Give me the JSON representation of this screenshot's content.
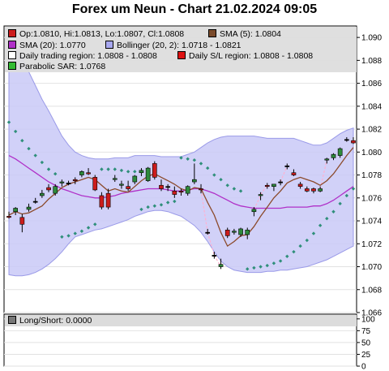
{
  "header": {
    "title": "Forex um Neun - Chart 21.02.2024 09:05"
  },
  "legend": {
    "ohlc": "Op:1.0810, Hi:1.0813, Lo:1.0807, Cl:1.0808",
    "sma5": "SMA (5): 1.0804",
    "sma20": "SMA (20): 1.0770",
    "bollinger": "Bollinger (20, 2): 1.0718 - 1.0821",
    "daily_region": "Daily trading region: 1.0808 - 1.0808",
    "daily_sl": "Daily S/L region: 1.0808 - 1.0808",
    "sar": "Parabolic SAR: 1.0768",
    "longshort": "Long/Short: 0.0000"
  },
  "colors": {
    "bull": "#2e8b3c",
    "bear": "#cc1c1c",
    "sma5": "#8b4a2b",
    "sma20": "#b030c8",
    "boll_fill": "#c9c9f7",
    "boll_line": "#9a9ae8",
    "sar": "#2f8f7a",
    "grid": "#e2e2e2",
    "region": "#ffb0d0"
  },
  "chart_data": {
    "type": "candlestick",
    "ylim": [
      1.066,
      1.091
    ],
    "yticks": [
      "1.066",
      "1.068",
      "1.070",
      "1.072",
      "1.074",
      "1.076",
      "1.078",
      "1.080",
      "1.082",
      "1.084",
      "1.086",
      "1.088",
      "1.090"
    ],
    "sub_ylim": [
      0,
      110
    ],
    "sub_yticks": [
      "0",
      "25",
      "50",
      "75",
      "100"
    ],
    "candles": [
      {
        "o": 1.0744,
        "h": 1.0748,
        "l": 1.0742,
        "c": 1.0743
      },
      {
        "o": 1.0748,
        "h": 1.0752,
        "l": 1.0745,
        "c": 1.0751
      },
      {
        "o": 1.0743,
        "h": 1.0746,
        "l": 1.073,
        "c": 1.0737
      },
      {
        "o": 1.075,
        "h": 1.0755,
        "l": 1.0748,
        "c": 1.0752
      },
      {
        "o": 1.0757,
        "h": 1.076,
        "l": 1.0755,
        "c": 1.0757
      },
      {
        "o": 1.0762,
        "h": 1.0767,
        "l": 1.076,
        "c": 1.0764
      },
      {
        "o": 1.0769,
        "h": 1.0772,
        "l": 1.0765,
        "c": 1.0767
      },
      {
        "o": 1.0764,
        "h": 1.0772,
        "l": 1.0762,
        "c": 1.077
      },
      {
        "o": 1.0773,
        "h": 1.0776,
        "l": 1.077,
        "c": 1.0774
      },
      {
        "o": 1.0773,
        "h": 1.0775,
        "l": 1.0771,
        "c": 1.0773
      },
      {
        "o": 1.0776,
        "h": 1.0778,
        "l": 1.0772,
        "c": 1.0775
      },
      {
        "o": 1.078,
        "h": 1.0784,
        "l": 1.0778,
        "c": 1.0783
      },
      {
        "o": 1.0782,
        "h": 1.0786,
        "l": 1.078,
        "c": 1.0781
      },
      {
        "o": 1.0778,
        "h": 1.078,
        "l": 1.0766,
        "c": 1.0767
      },
      {
        "o": 1.0762,
        "h": 1.0765,
        "l": 1.075,
        "c": 1.0752
      },
      {
        "o": 1.0764,
        "h": 1.0768,
        "l": 1.075,
        "c": 1.0752
      },
      {
        "o": 1.0776,
        "h": 1.078,
        "l": 1.0774,
        "c": 1.0777
      },
      {
        "o": 1.0771,
        "h": 1.0775,
        "l": 1.0768,
        "c": 1.0772
      },
      {
        "o": 1.077,
        "h": 1.0775,
        "l": 1.0766,
        "c": 1.0768
      },
      {
        "o": 1.0774,
        "h": 1.078,
        "l": 1.0772,
        "c": 1.0779
      },
      {
        "o": 1.0782,
        "h": 1.0786,
        "l": 1.0779,
        "c": 1.0784
      },
      {
        "o": 1.0775,
        "h": 1.0787,
        "l": 1.0774,
        "c": 1.0786
      },
      {
        "o": 1.079,
        "h": 1.0792,
        "l": 1.0776,
        "c": 1.0778
      },
      {
        "o": 1.0771,
        "h": 1.0776,
        "l": 1.0766,
        "c": 1.0768
      },
      {
        "o": 1.077,
        "h": 1.0772,
        "l": 1.0766,
        "c": 1.077
      },
      {
        "o": 1.0766,
        "h": 1.077,
        "l": 1.076,
        "c": 1.0763
      },
      {
        "o": 1.0766,
        "h": 1.0768,
        "l": 1.0762,
        "c": 1.0765
      },
      {
        "o": 1.0764,
        "h": 1.0771,
        "l": 1.0762,
        "c": 1.077
      },
      {
        "o": 1.0774,
        "h": 1.079,
        "l": 1.0772,
        "c": 1.0776
      },
      {
        "o": 1.0768,
        "h": 1.0772,
        "l": 1.0764,
        "c": 1.0767
      },
      {
        "o": 1.073,
        "h": 1.0733,
        "l": 1.0728,
        "c": 1.073
      },
      {
        "o": 1.071,
        "h": 1.0713,
        "l": 1.0707,
        "c": 1.071
      },
      {
        "o": 1.07,
        "h": 1.0707,
        "l": 1.0698,
        "c": 1.0702
      },
      {
        "o": 1.0732,
        "h": 1.0734,
        "l": 1.0725,
        "c": 1.0727
      },
      {
        "o": 1.073,
        "h": 1.0733,
        "l": 1.0728,
        "c": 1.0731
      },
      {
        "o": 1.0728,
        "h": 1.0734,
        "l": 1.0726,
        "c": 1.0733
      },
      {
        "o": 1.0728,
        "h": 1.0734,
        "l": 1.0724,
        "c": 1.0732
      },
      {
        "o": 1.0748,
        "h": 1.0752,
        "l": 1.0744,
        "c": 1.075
      },
      {
        "o": 1.0762,
        "h": 1.0765,
        "l": 1.0758,
        "c": 1.0763
      },
      {
        "o": 1.0771,
        "h": 1.0773,
        "l": 1.0768,
        "c": 1.077
      },
      {
        "o": 1.077,
        "h": 1.0772,
        "l": 1.0766,
        "c": 1.0772
      },
      {
        "o": 1.0774,
        "h": 1.0776,
        "l": 1.0771,
        "c": 1.0774
      },
      {
        "o": 1.0788,
        "h": 1.079,
        "l": 1.0785,
        "c": 1.0788
      },
      {
        "o": 1.0782,
        "h": 1.0785,
        "l": 1.0779,
        "c": 1.078
      },
      {
        "o": 1.0772,
        "h": 1.0774,
        "l": 1.0768,
        "c": 1.077
      },
      {
        "o": 1.0768,
        "h": 1.077,
        "l": 1.0765,
        "c": 1.0766
      },
      {
        "o": 1.0768,
        "h": 1.0769,
        "l": 1.0764,
        "c": 1.0766
      },
      {
        "o": 1.0766,
        "h": 1.077,
        "l": 1.0765,
        "c": 1.0768
      },
      {
        "o": 1.0793,
        "h": 1.0795,
        "l": 1.079,
        "c": 1.0794
      },
      {
        "o": 1.0795,
        "h": 1.0799,
        "l": 1.0793,
        "c": 1.0798
      },
      {
        "o": 1.0797,
        "h": 1.0804,
        "l": 1.0795,
        "c": 1.0803
      },
      {
        "o": 1.0811,
        "h": 1.0813,
        "l": 1.0809,
        "c": 1.0811
      },
      {
        "o": 1.081,
        "h": 1.0813,
        "l": 1.0807,
        "c": 1.0808
      }
    ],
    "sma5": [
      1.0745,
      1.0748,
      1.0746,
      1.0747,
      1.075,
      1.0753,
      1.0759,
      1.0764,
      1.0769,
      1.0772,
      1.0774,
      1.0776,
      1.0778,
      1.0776,
      1.0771,
      1.0766,
      1.0768,
      1.0766,
      1.0765,
      1.077,
      1.0775,
      1.0779,
      1.0781,
      1.0778,
      1.0775,
      1.0772,
      1.0768,
      1.0766,
      1.0769,
      1.0768,
      1.0756,
      1.0745,
      1.073,
      1.0718,
      1.0722,
      1.0727,
      1.0728,
      1.0735,
      1.0744,
      1.0752,
      1.076,
      1.0766,
      1.0773,
      1.0776,
      1.0778,
      1.0776,
      1.0774,
      1.0771,
      1.0775,
      1.0781,
      1.0789,
      1.0797,
      1.0804
    ],
    "sma20": [
      1.0797,
      1.0794,
      1.079,
      1.0786,
      1.0782,
      1.0778,
      1.0774,
      1.0771,
      1.0768,
      1.0766,
      1.0764,
      1.0762,
      1.0761,
      1.076,
      1.076,
      1.0761,
      1.0762,
      1.0764,
      1.0765,
      1.0766,
      1.0767,
      1.0768,
      1.0768,
      1.0768,
      1.0767,
      1.0766,
      1.0766,
      1.0767,
      1.0768,
      1.0768,
      1.0766,
      1.0764,
      1.0761,
      1.0758,
      1.0755,
      1.0753,
      1.0752,
      1.0751,
      1.0751,
      1.0751,
      1.0751,
      1.0751,
      1.0752,
      1.0752,
      1.0752,
      1.0752,
      1.0753,
      1.0753,
      1.0755,
      1.0758,
      1.0762,
      1.0766,
      1.077
    ],
    "boll_upper": [
      1.0895,
      1.089,
      1.0882,
      1.087,
      1.0858,
      1.0846,
      1.0836,
      1.0825,
      1.0814,
      1.0806,
      1.08,
      1.0797,
      1.0795,
      1.0794,
      1.0794,
      1.0794,
      1.0795,
      1.0795,
      1.0795,
      1.0797,
      1.0797,
      1.0797,
      1.0797,
      1.0796,
      1.0796,
      1.0796,
      1.0796,
      1.0798,
      1.08,
      1.0804,
      1.0808,
      1.0811,
      1.0813,
      1.0814,
      1.0814,
      1.0814,
      1.0814,
      1.0814,
      1.0813,
      1.0812,
      1.0812,
      1.0812,
      1.0812,
      1.0812,
      1.081,
      1.0808,
      1.0806,
      1.0806,
      1.0808,
      1.0812,
      1.0816,
      1.0819,
      1.0821
    ],
    "boll_lower": [
      1.0693,
      1.0692,
      1.0692,
      1.0693,
      1.0695,
      1.0698,
      1.0702,
      1.0707,
      1.0713,
      1.072,
      1.0726,
      1.0728,
      1.073,
      1.0732,
      1.0733,
      1.0735,
      1.0737,
      1.0739,
      1.0741,
      1.0744,
      1.0746,
      1.0748,
      1.0749,
      1.0749,
      1.0748,
      1.0746,
      1.0744,
      1.074,
      1.0736,
      1.073,
      1.0722,
      1.0713,
      1.0705,
      1.07,
      1.0697,
      1.0696,
      1.0695,
      1.0695,
      1.0695,
      1.0696,
      1.0696,
      1.0697,
      1.0697,
      1.0698,
      1.0699,
      1.07,
      1.0702,
      1.0704,
      1.0706,
      1.0709,
      1.0712,
      1.0715,
      1.0718
    ],
    "sar_idx": [
      0,
      1,
      2,
      3,
      4,
      5,
      6,
      7,
      8,
      9,
      10,
      11,
      12,
      13,
      14,
      15,
      16,
      17,
      18,
      19,
      20,
      21,
      22,
      23,
      24,
      25,
      26,
      27,
      28,
      29,
      30,
      31,
      32,
      33,
      34,
      35,
      36,
      37,
      38,
      39,
      40,
      41,
      42,
      43,
      44,
      45,
      46,
      47,
      48,
      49,
      50,
      51,
      52
    ],
    "sar": [
      1.0826,
      1.0818,
      1.081,
      1.0803,
      1.0797,
      1.0791,
      1.0785,
      1.0781,
      1.0726,
      1.0727,
      1.0729,
      1.0731,
      1.0734,
      1.0737,
      1.0785,
      1.0785,
      1.0785,
      1.0784,
      1.0783,
      1.0783,
      1.075,
      1.0752,
      1.0753,
      1.0754,
      1.0756,
      1.0757,
      1.0795,
      1.0794,
      1.0793,
      1.079,
      1.0786,
      1.078,
      1.0776,
      1.0771,
      1.0768,
      1.0766,
      1.0698,
      1.0699,
      1.07,
      1.0701,
      1.0703,
      1.0705,
      1.0709,
      1.0713,
      1.0718,
      1.0723,
      1.0729,
      1.0736,
      1.0742,
      1.0748,
      1.0755,
      1.0762,
      1.0768
    ],
    "region_links": [
      [
        29,
        30
      ],
      [
        30,
        31
      ],
      [
        31,
        32
      ],
      [
        37,
        38
      ],
      [
        38,
        39
      ],
      [
        41,
        42
      ],
      [
        47,
        48
      ]
    ]
  }
}
